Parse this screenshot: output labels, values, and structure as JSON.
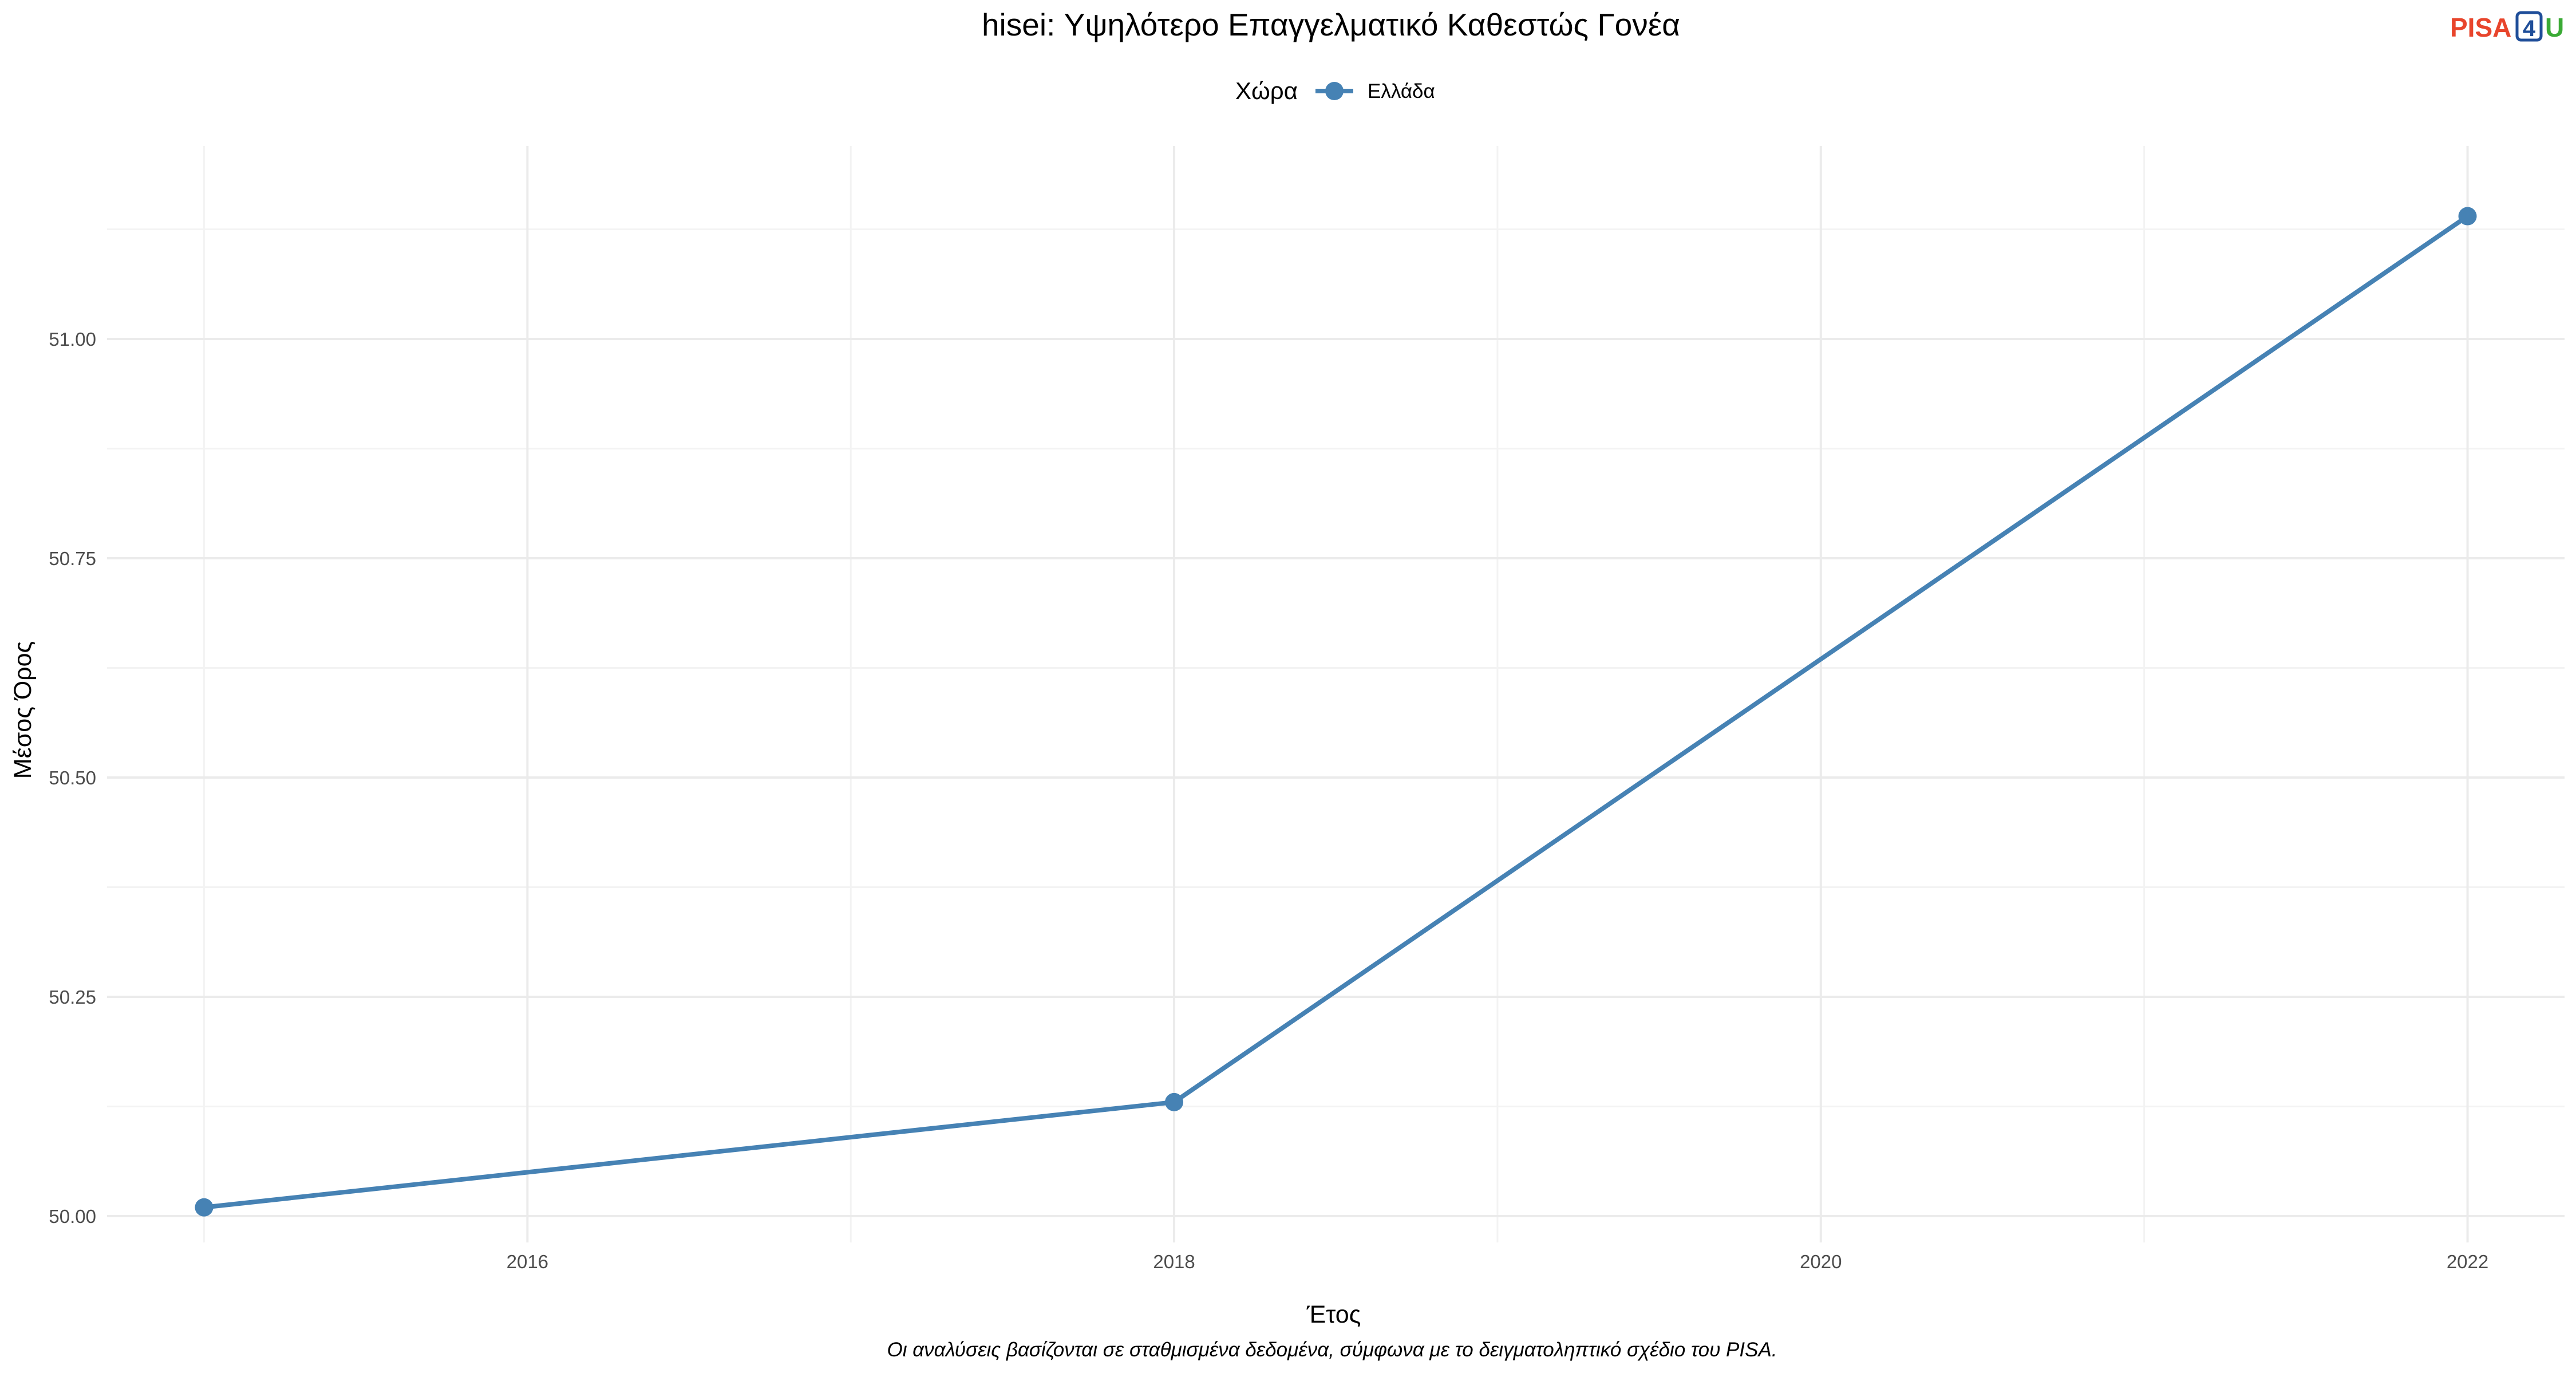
{
  "chart_data": {
    "type": "line",
    "title": "hisei: Υψηλότερο Επαγγελματικό Καθεστώς Γονέα",
    "xlabel": "Έτος",
    "ylabel": "Μέσος Όρος",
    "caption": "Οι αναλύσεις βασίζονται σε σταθμισμένα δεδομένα, σύμφωνα με το δειγματοληπτικό σχέδιο του PISA.",
    "legend": {
      "title": "Χώρα",
      "position": "top"
    },
    "x": [
      2015,
      2018,
      2022
    ],
    "series": [
      {
        "name": "Ελλάδα",
        "values": [
          50.01,
          50.13,
          51.14
        ],
        "color": "#4682b4"
      }
    ],
    "xlim": [
      2014.7,
      2022.3
    ],
    "ylim": [
      49.97,
      51.22
    ],
    "x_ticks": [
      2016,
      2018,
      2020,
      2022
    ],
    "x_tick_labels": [
      "2016",
      "2018",
      "2020",
      "2022"
    ],
    "y_ticks": [
      50.0,
      50.25,
      50.5,
      50.75,
      51.0
    ],
    "y_tick_labels": [
      "50.00",
      "50.25",
      "50.50",
      "50.75",
      "51.00"
    ],
    "grid": true
  },
  "logo": {
    "text_left": "PISA",
    "text_middle": "4",
    "text_right": "U",
    "color_left": "#e8452c",
    "color_middle": "#1f4e99",
    "color_right": "#3aaa35"
  }
}
